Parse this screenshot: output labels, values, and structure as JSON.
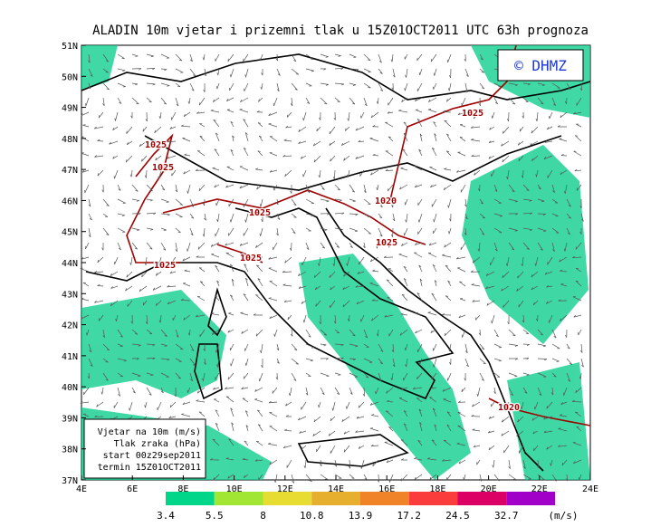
{
  "header": {
    "title": "ALADIN 10m vjetar i prizemni tlak u 15Z01OCT2011 UTC 63h prognoza"
  },
  "map": {
    "credit": "© DHMZ",
    "lat_labels": [
      "37N",
      "38N",
      "39N",
      "40N",
      "41N",
      "42N",
      "43N",
      "44N",
      "45N",
      "46N",
      "47N",
      "48N",
      "49N",
      "50N",
      "51N"
    ],
    "lon_labels": [
      "4E",
      "6E",
      "8E",
      "10E",
      "12E",
      "14E",
      "16E",
      "18E",
      "20E",
      "22E",
      "24E"
    ],
    "isobar_labels": [
      "1025",
      "1025",
      "1025",
      "1025",
      "1025",
      "1025",
      "1025",
      "1020",
      "1020"
    ]
  },
  "info_box": {
    "lines": [
      "Vjetar na 10m (m/s)",
      "Tlak zraka (hPa)",
      "start 00z29sep2011",
      "termin 15Z01OCT2011"
    ]
  },
  "colorbar": {
    "labels": [
      "3.4",
      "5.5",
      "8",
      "10.8",
      "13.9",
      "17.2",
      "24.5",
      "32.7"
    ],
    "unit": "(m/s)",
    "colors": [
      "#00d68a",
      "#a0e632",
      "#e6dc32",
      "#e6af2d",
      "#f08228",
      "#fa3c3c",
      "#dc0064",
      "#a000c8"
    ]
  }
}
